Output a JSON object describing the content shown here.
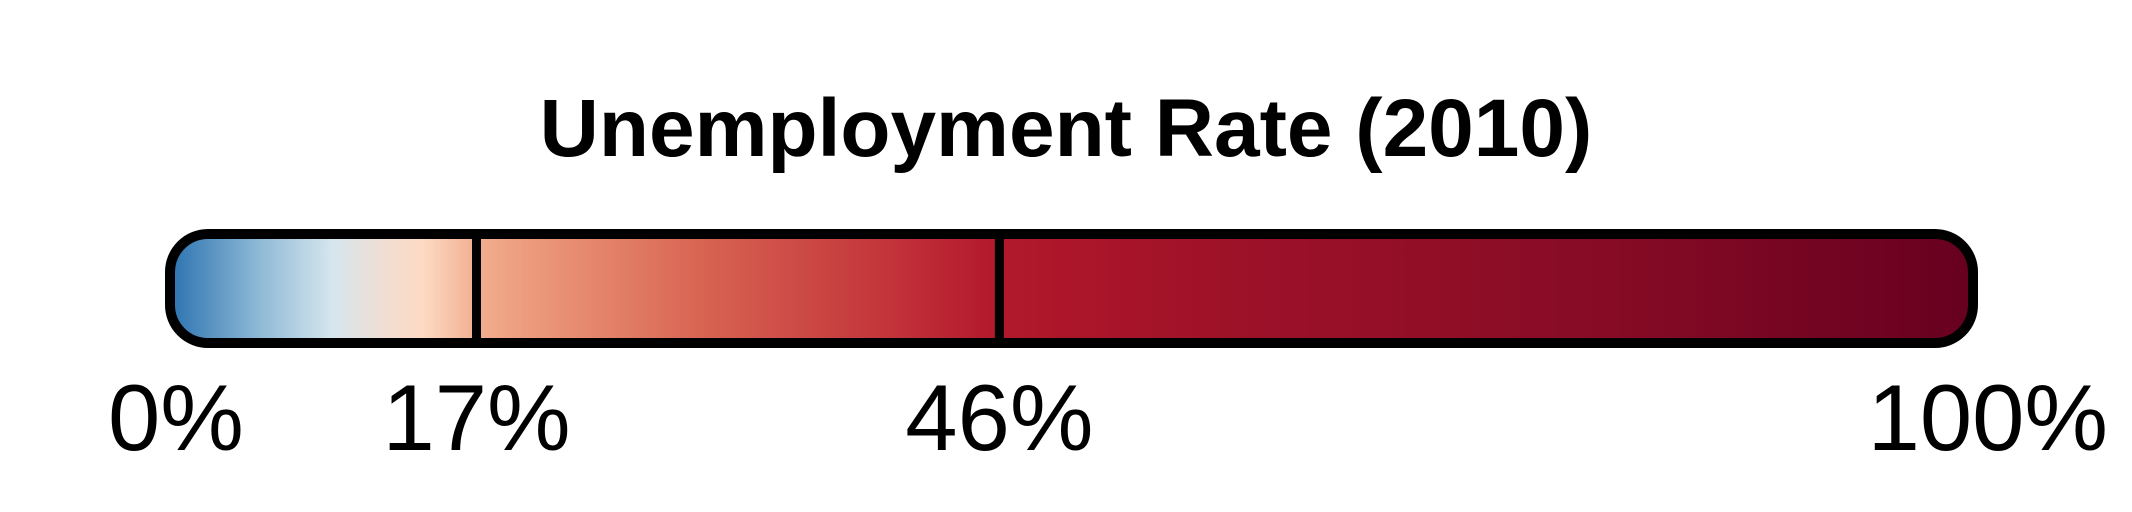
{
  "chart_data": {
    "type": "colorbar",
    "title": "Unemployment Rate (2010)",
    "range": [
      0,
      100
    ],
    "unit": "%",
    "ticks": [
      {
        "value": 0,
        "label": "0%"
      },
      {
        "value": 17,
        "label": "17%"
      },
      {
        "value": 46,
        "label": "46%"
      },
      {
        "value": 100,
        "label": "100%"
      }
    ],
    "dividers": [
      17,
      46
    ],
    "color_stops": [
      {
        "value": 0,
        "color": "#2c73b0"
      },
      {
        "value": 5,
        "color": "#8fbad6"
      },
      {
        "value": 9,
        "color": "#d6e6ee"
      },
      {
        "value": 12,
        "color": "#f1ddd2"
      },
      {
        "value": 14,
        "color": "#fddac4"
      },
      {
        "value": 17,
        "color": "#f1ae8f"
      },
      {
        "value": 20,
        "color": "#ec9a7c"
      },
      {
        "value": 30,
        "color": "#d76150"
      },
      {
        "value": 40,
        "color": "#c2333a"
      },
      {
        "value": 46,
        "color": "#b2182b"
      },
      {
        "value": 60,
        "color": "#9c1128"
      },
      {
        "value": 80,
        "color": "#860b25"
      },
      {
        "value": 100,
        "color": "#67001f"
      }
    ],
    "outline_color": "#000000"
  }
}
